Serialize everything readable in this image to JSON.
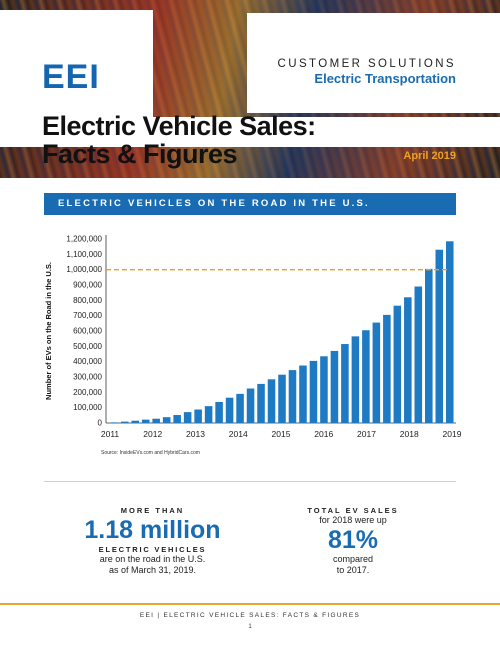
{
  "header": {
    "logo": "EEI",
    "kicker": "CUSTOMER SOLUTIONS",
    "division": "Electric Transportation",
    "title_line1": "Electric Vehicle Sales:",
    "title_line2": "Facts & Figures",
    "date": "April 2019"
  },
  "banner": "ELECTRIC VEHICLES ON THE ROAD IN THE U.S.",
  "chart_data": {
    "type": "bar",
    "ylabel": "Number of EVs on the Road in the U.S.",
    "ylim": [
      0,
      1200000
    ],
    "yticks": [
      "0",
      "100,000",
      "200,000",
      "300,000",
      "400,000",
      "500,000",
      "600,000",
      "700,000",
      "800,000",
      "900,000",
      "1,000,000",
      "1,100,000",
      "1,200,000"
    ],
    "xticks": [
      "2011",
      "2012",
      "2013",
      "2014",
      "2015",
      "2016",
      "2017",
      "2018",
      "2019"
    ],
    "reference_line": 1000000,
    "reference_color": "#f0a020",
    "bar_color": "#1f7ac4",
    "values": [
      4000,
      9000,
      15000,
      22000,
      28000,
      38000,
      52000,
      71000,
      88000,
      110000,
      137000,
      165000,
      190000,
      225000,
      255000,
      285000,
      315000,
      345000,
      375000,
      405000,
      435000,
      470000,
      515000,
      565000,
      605000,
      655000,
      705000,
      765000,
      820000,
      890000,
      1005000,
      1130000,
      1185000
    ]
  },
  "source": "Source: InsideEVs.com and HybridCars.com",
  "stat_left": {
    "prefix": "MORE THAN",
    "value": "1.18 million",
    "label": "ELECTRIC VEHICLES",
    "line1": "are on the road in the U.S.",
    "line2": "as of March 31, 2019."
  },
  "stat_right": {
    "prefix": "TOTAL EV SALES",
    "line1": "for 2018 were up",
    "value": "81%",
    "line2": "compared",
    "line3": "to 2017."
  },
  "footer": "EEI | ELECTRIC VEHICLE SALES: FACTS & FIGURES",
  "page_number": "1"
}
